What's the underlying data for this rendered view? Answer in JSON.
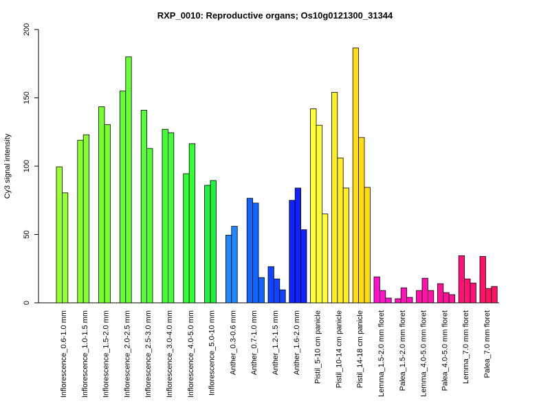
{
  "chart_data": {
    "type": "bar",
    "title": "RXP_0010: Reproductive organs; Os10g0121300_31344",
    "xlabel": "",
    "ylabel": "Cy3 signal intensity",
    "ylim": [
      0,
      200
    ],
    "yticks": [
      0,
      50,
      100,
      150,
      200
    ],
    "grid": false,
    "legend": "none",
    "groups": [
      {
        "label": "Inflorescence_0.6-1.0 mm",
        "values": [
          99.5,
          80.5
        ],
        "color": "#99ff33"
      },
      {
        "label": "Inflorescence_1.0-1.5 mm",
        "values": [
          119,
          123
        ],
        "color": "#88ff33"
      },
      {
        "label": "Inflorescence_1.5-2.0 mm",
        "values": [
          143.5,
          130.5
        ],
        "color": "#77ff33"
      },
      {
        "label": "Inflorescence_2.0-2.5 mm",
        "values": [
          155,
          180
        ],
        "color": "#66ff33"
      },
      {
        "label": "Inflorescence_2.5-3.0 mm",
        "values": [
          141,
          113
        ],
        "color": "#55ff33"
      },
      {
        "label": "Inflorescence_3.0-4.0 mm",
        "values": [
          127,
          124.5
        ],
        "color": "#44ff33"
      },
      {
        "label": "Inflorescence_4.0-5.0 mm",
        "values": [
          94.5,
          116.5
        ],
        "color": "#33ff33"
      },
      {
        "label": "Inflorescence_5.0-10 mm",
        "values": [
          86,
          89.5
        ],
        "color": "#22ee44"
      },
      {
        "label": "Anther_0.3-0.6 mm",
        "values": [
          49.5,
          56
        ],
        "color": "#2288ff"
      },
      {
        "label": "Anther_0.7-1.0 mm",
        "values": [
          76.5,
          73,
          18.5
        ],
        "color": "#1166ff"
      },
      {
        "label": "Anther_1.2-1.5 mm",
        "values": [
          26.5,
          17.5,
          9.5
        ],
        "color": "#1144ff"
      },
      {
        "label": "Anther_1.6-2.0 mm",
        "values": [
          75,
          84,
          53.5
        ],
        "color": "#1122ff"
      },
      {
        "label": "Pistil_5-10 cm panicle",
        "values": [
          142,
          130,
          65
        ],
        "color": "#ffff33"
      },
      {
        "label": "Pistil_10-14 cm panicle",
        "values": [
          154,
          106,
          84
        ],
        "color": "#ffee22"
      },
      {
        "label": "Pistil_14-18 cm panicle",
        "values": [
          186.5,
          121,
          84.5
        ],
        "color": "#ffdd11"
      },
      {
        "label": "Lemma_1.5-2.0 mm floret",
        "values": [
          19,
          9,
          3.5
        ],
        "color": "#ff11cc"
      },
      {
        "label": "Palea_1.5-2.0 mm floret",
        "values": [
          3,
          11,
          4
        ],
        "color": "#ff11bb"
      },
      {
        "label": "Lemma_4.0-5.0 mm floret",
        "values": [
          9,
          18,
          9
        ],
        "color": "#ff11aa"
      },
      {
        "label": "Palea_4.0-5.0 mm floret",
        "values": [
          14,
          7.5,
          6
        ],
        "color": "#ff1199"
      },
      {
        "label": "Lemma_7.0 mm floret",
        "values": [
          34.5,
          17.5,
          14.5
        ],
        "color": "#ff1177"
      },
      {
        "label": "Palea_7.0 mm floret",
        "values": [
          34,
          10.5,
          12
        ],
        "color": "#ff1166"
      }
    ]
  }
}
